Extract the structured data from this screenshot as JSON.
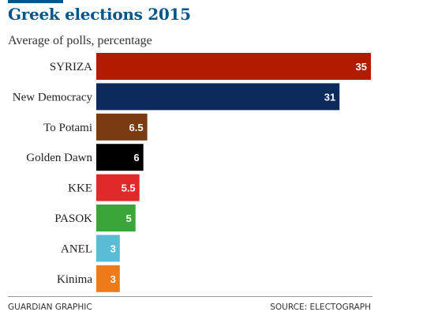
{
  "title": "Greek elections 2015",
  "subtitle": "Average of polls, percentage",
  "footer": {
    "credit": "GUARDIAN GRAPHIC",
    "source": "SOURCE: ELECTOGRAPH"
  },
  "chart_data": {
    "type": "bar",
    "orientation": "horizontal",
    "title": "Greek elections 2015",
    "subtitle": "Average of polls, percentage",
    "categories": [
      "SYRIZA",
      "New Democracy",
      "To Potami",
      "Golden Dawn",
      "KKE",
      "PASOK",
      "ANEL",
      "Kinima"
    ],
    "values": [
      35,
      31,
      6.5,
      6,
      5.5,
      5,
      3,
      3
    ],
    "value_labels": [
      "35",
      "31",
      "6.5",
      "6",
      "5.5",
      "5",
      "3",
      "3"
    ],
    "colors": [
      "#b31b00",
      "#0c2a5b",
      "#7a3b10",
      "#000000",
      "#e02a2a",
      "#3aa63a",
      "#5bbcd6",
      "#ef7a1a"
    ],
    "xlim": [
      0,
      35
    ],
    "grid": false,
    "legend": "none"
  }
}
